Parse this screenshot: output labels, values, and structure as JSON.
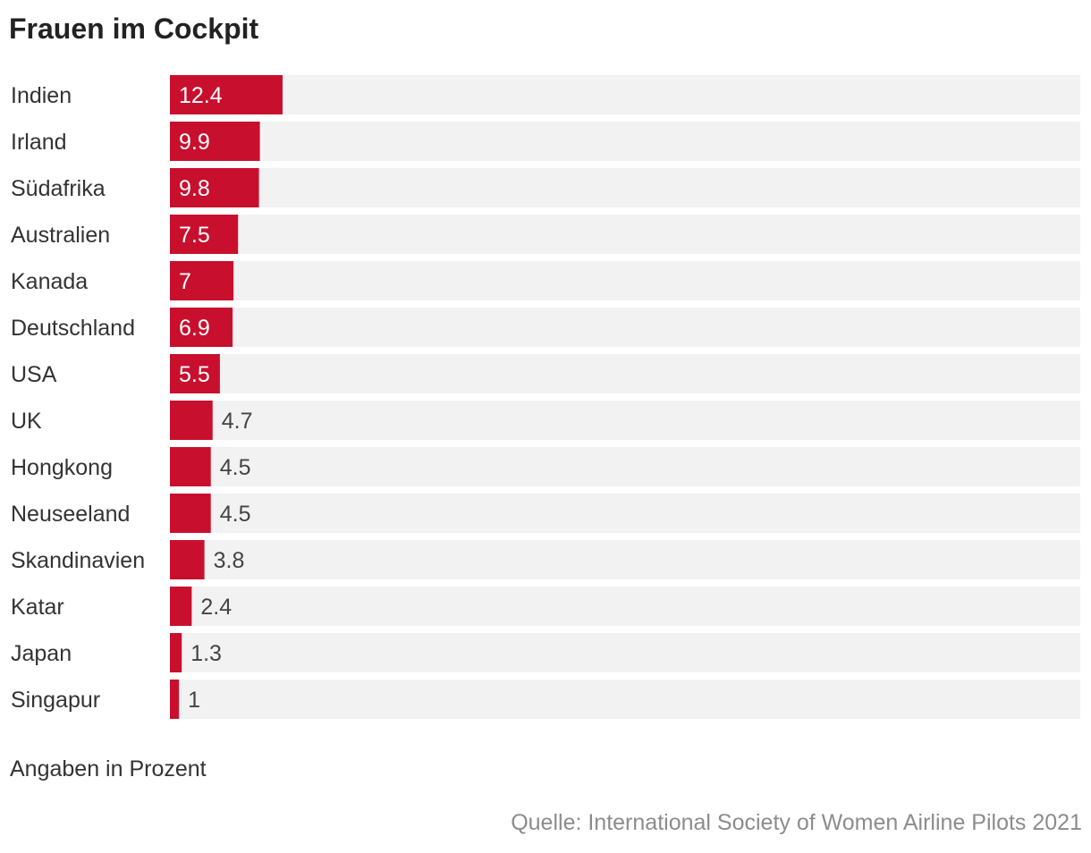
{
  "chart_data": {
    "type": "bar",
    "orientation": "horizontal",
    "title": "Frauen im Cockpit",
    "categories": [
      "Indien",
      "Irland",
      "Südafrika",
      "Australien",
      "Kanada",
      "Deutschland",
      "USA",
      "UK",
      "Hongkong",
      "Neuseeland",
      "Skandinavien",
      "Katar",
      "Japan",
      "Singapur"
    ],
    "values": [
      12.4,
      9.9,
      9.8,
      7.5,
      7,
      6.9,
      5.5,
      4.7,
      4.5,
      4.5,
      3.8,
      2.4,
      1.3,
      1
    ],
    "value_labels": [
      "12.4",
      "9.9",
      "9.8",
      "7.5",
      "7",
      "6.9",
      "5.5",
      "4.7",
      "4.5",
      "4.5",
      "3.8",
      "2.4",
      "1.3",
      "1"
    ],
    "xlim": [
      0,
      100
    ],
    "unit_note": "Angaben in Prozent",
    "source": "Quelle: International Society of Women Airline Pilots 2021",
    "colors": {
      "bar": "#c8102e",
      "track": "#f2f2f2",
      "label_inside": "#ffffff",
      "label_outside": "#444444"
    }
  }
}
